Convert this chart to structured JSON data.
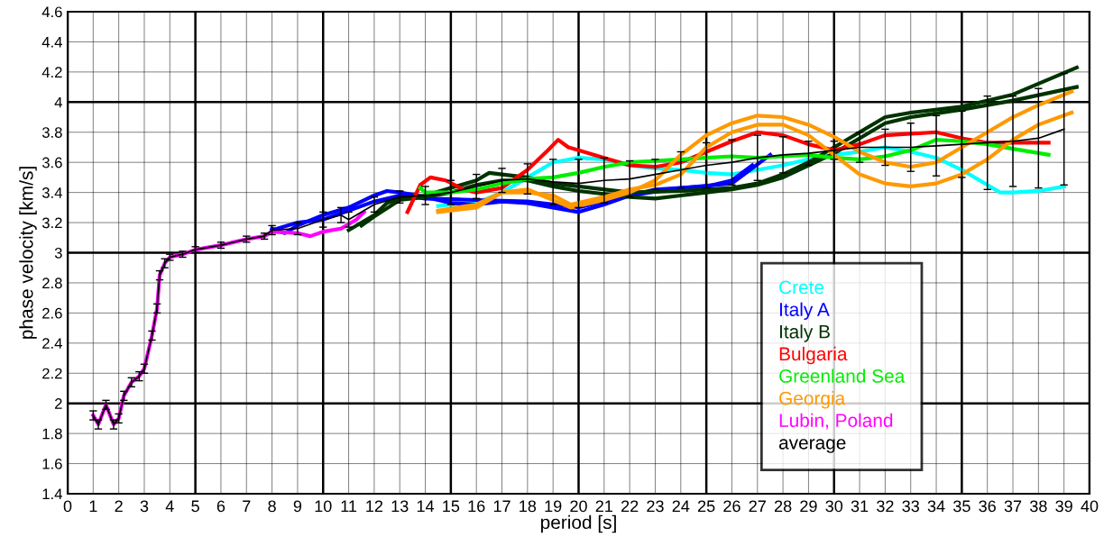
{
  "chart_data": {
    "type": "line",
    "xlabel": "period [s]",
    "ylabel": "phase velocity [km/s]",
    "xlim": [
      0,
      40
    ],
    "ylim": [
      1.4,
      4.6
    ],
    "xticks": [
      0,
      1,
      2,
      3,
      4,
      5,
      6,
      7,
      8,
      9,
      10,
      11,
      12,
      13,
      14,
      15,
      16,
      17,
      18,
      19,
      20,
      21,
      22,
      23,
      24,
      25,
      26,
      27,
      28,
      29,
      30,
      31,
      32,
      33,
      34,
      35,
      36,
      37,
      38,
      39,
      40
    ],
    "yticks": [
      1.4,
      1.6,
      1.8,
      2,
      2.2,
      2.4,
      2.6,
      2.8,
      3,
      3.2,
      3.4,
      3.6,
      3.8,
      4,
      4.2,
      4.4,
      4.6
    ],
    "grid": true,
    "legend": "bottom right",
    "marker": "none",
    "line_style": "solid",
    "series": [
      {
        "name": "Crete",
        "color": "#00ffff",
        "x": [
          14.5,
          15,
          16,
          17,
          18,
          19,
          20,
          21,
          22,
          23,
          24,
          25,
          26,
          27,
          28,
          29,
          30,
          31,
          32,
          33,
          34,
          35,
          36,
          36.5,
          37,
          38,
          39
        ],
        "values": [
          3.31,
          3.32,
          3.33,
          3.4,
          3.5,
          3.6,
          3.63,
          3.62,
          3.58,
          3.56,
          3.55,
          3.53,
          3.52,
          3.55,
          3.58,
          3.62,
          3.65,
          3.67,
          3.7,
          3.67,
          3.63,
          3.55,
          3.45,
          3.4,
          3.4,
          3.41,
          3.44
        ]
      },
      {
        "name": "Italy A",
        "color": "#0000ff",
        "x": [
          8,
          8.5,
          9,
          10,
          11,
          12,
          12.5,
          13,
          14,
          15,
          16,
          17,
          18,
          19,
          20,
          21,
          22,
          23,
          24,
          25,
          26,
          26.8
        ],
        "values": [
          3.16,
          3.13,
          3.18,
          3.25,
          3.3,
          3.38,
          3.41,
          3.4,
          3.37,
          3.33,
          3.32,
          3.34,
          3.33,
          3.3,
          3.27,
          3.32,
          3.38,
          3.42,
          3.43,
          3.44,
          3.48,
          3.58
        ]
      },
      {
        "color": "#0000ff",
        "x": [
          8,
          9,
          10,
          11,
          12,
          13,
          14,
          16,
          18,
          20,
          22,
          24,
          26,
          27.5
        ],
        "values": [
          3.15,
          3.2,
          3.22,
          3.28,
          3.34,
          3.38,
          3.36,
          3.35,
          3.34,
          3.3,
          3.38,
          3.43,
          3.46,
          3.65
        ]
      },
      {
        "name": "Italy B",
        "color": "#003300",
        "x": [
          11,
          12,
          12.5,
          13,
          14,
          15,
          16,
          16.5,
          17,
          18,
          19,
          20,
          22,
          24,
          26,
          27,
          28,
          29,
          30,
          31,
          32,
          33,
          35,
          37,
          39.5
        ],
        "values": [
          3.15,
          3.25,
          3.33,
          3.36,
          3.38,
          3.43,
          3.48,
          3.53,
          3.52,
          3.5,
          3.46,
          3.44,
          3.4,
          3.41,
          3.43,
          3.46,
          3.52,
          3.6,
          3.7,
          3.8,
          3.9,
          3.93,
          3.97,
          4.05,
          4.23
        ]
      },
      {
        "color": "#003300",
        "x": [
          11.5,
          12,
          13,
          14,
          15,
          16,
          17,
          18,
          19,
          20,
          21,
          22,
          23,
          24,
          25,
          26,
          27,
          28,
          29,
          30,
          31,
          32,
          33,
          35,
          37,
          39.5
        ],
        "values": [
          3.18,
          3.24,
          3.35,
          3.37,
          3.4,
          3.45,
          3.48,
          3.48,
          3.44,
          3.41,
          3.39,
          3.37,
          3.36,
          3.38,
          3.4,
          3.42,
          3.45,
          3.5,
          3.58,
          3.66,
          3.76,
          3.86,
          3.9,
          3.95,
          4.01,
          4.1
        ]
      },
      {
        "name": "Bulgaria",
        "color": "#ff0000",
        "x": [
          13.3,
          13.8,
          14.2,
          14.8,
          15.5,
          16,
          17,
          18,
          18.8,
          19.2,
          19.6,
          20,
          21,
          22,
          23,
          24,
          25,
          26,
          27,
          28,
          29,
          30,
          31,
          32,
          33,
          34,
          35,
          36,
          38.4
        ],
        "values": [
          3.27,
          3.45,
          3.5,
          3.48,
          3.42,
          3.4,
          3.43,
          3.55,
          3.68,
          3.75,
          3.7,
          3.68,
          3.63,
          3.58,
          3.57,
          3.6,
          3.67,
          3.74,
          3.8,
          3.78,
          3.72,
          3.68,
          3.72,
          3.78,
          3.79,
          3.8,
          3.76,
          3.73,
          3.73
        ]
      },
      {
        "name": "Greenland Sea",
        "color": "#00ee00",
        "x": [
          13.8,
          14,
          15,
          16,
          17,
          18,
          19,
          20,
          21,
          22,
          23,
          24,
          25,
          26,
          27,
          28,
          29,
          30,
          31,
          32,
          33,
          34,
          35,
          36,
          37,
          38.4
        ],
        "values": [
          3.43,
          3.4,
          3.4,
          3.42,
          3.46,
          3.49,
          3.5,
          3.53,
          3.57,
          3.6,
          3.61,
          3.62,
          3.63,
          3.64,
          3.63,
          3.64,
          3.65,
          3.63,
          3.62,
          3.64,
          3.68,
          3.75,
          3.74,
          3.72,
          3.69,
          3.65
        ]
      },
      {
        "name": "Georgia",
        "color": "#ff9900",
        "x": [
          14.5,
          15,
          16,
          17,
          18,
          19,
          19.7,
          21,
          22,
          23,
          24,
          25,
          26,
          27,
          28,
          29,
          30,
          31,
          32,
          33,
          34,
          35,
          36,
          37,
          38,
          39.3
        ],
        "values": [
          3.27,
          3.28,
          3.3,
          3.4,
          3.42,
          3.35,
          3.3,
          3.35,
          3.4,
          3.48,
          3.65,
          3.78,
          3.86,
          3.91,
          3.9,
          3.85,
          3.77,
          3.67,
          3.6,
          3.57,
          3.6,
          3.7,
          3.8,
          3.9,
          3.98,
          4.07
        ]
      },
      {
        "color": "#ff9900",
        "x": [
          14.5,
          16,
          17,
          18,
          19,
          19.7,
          21,
          22,
          23,
          24,
          25,
          26,
          27,
          28,
          29,
          30,
          31,
          32,
          33,
          34,
          35,
          36,
          37,
          38,
          39.3
        ],
        "values": [
          3.28,
          3.32,
          3.4,
          3.4,
          3.38,
          3.32,
          3.37,
          3.42,
          3.45,
          3.52,
          3.7,
          3.8,
          3.85,
          3.85,
          3.78,
          3.65,
          3.52,
          3.46,
          3.44,
          3.46,
          3.52,
          3.62,
          3.75,
          3.85,
          3.93
        ]
      },
      {
        "name": "Lubin, Poland",
        "color": "#ff00ff",
        "x": [
          1,
          1.2,
          1.5,
          1.8,
          2,
          2.2,
          2.5,
          2.8,
          3,
          3.3,
          3.5,
          3.6,
          3.8,
          4,
          4.5,
          5,
          6,
          7,
          7.7,
          8,
          9,
          9.5,
          10,
          10.7,
          11.3,
          11.6
        ],
        "values": [
          1.92,
          1.86,
          1.99,
          1.86,
          1.9,
          2.05,
          2.14,
          2.18,
          2.23,
          2.45,
          2.63,
          2.85,
          2.93,
          2.97,
          2.99,
          3.02,
          3.05,
          3.09,
          3.11,
          3.14,
          3.13,
          3.11,
          3.14,
          3.16,
          3.22,
          3.27
        ]
      },
      {
        "name": "average",
        "color": "#000000",
        "x": [
          1,
          1.2,
          1.5,
          1.8,
          2,
          2.2,
          2.5,
          2.8,
          3,
          3.3,
          3.5,
          3.6,
          3.8,
          4,
          4.5,
          5,
          6,
          7,
          7.7,
          8,
          9,
          10,
          10.7,
          11,
          12,
          13,
          14,
          15,
          16,
          17,
          18,
          19,
          20,
          21,
          22,
          23,
          24,
          25,
          26,
          27,
          28,
          29,
          30,
          31,
          32,
          33,
          34,
          35,
          36,
          37,
          38,
          39
        ],
        "values": [
          1.92,
          1.86,
          1.99,
          1.86,
          1.9,
          2.05,
          2.14,
          2.18,
          2.23,
          2.45,
          2.63,
          2.85,
          2.93,
          2.97,
          2.99,
          3.02,
          3.05,
          3.09,
          3.11,
          3.15,
          3.16,
          3.22,
          3.25,
          3.22,
          3.32,
          3.37,
          3.38,
          3.4,
          3.44,
          3.48,
          3.49,
          3.47,
          3.46,
          3.48,
          3.49,
          3.52,
          3.55,
          3.58,
          3.6,
          3.63,
          3.65,
          3.66,
          3.68,
          3.7,
          3.7,
          3.7,
          3.71,
          3.72,
          3.73,
          3.74,
          3.76,
          3.82
        ],
        "errors": [
          0.03,
          0.03,
          0.03,
          0.03,
          0.03,
          0.03,
          0.03,
          0.03,
          0.03,
          0.03,
          0.03,
          0.03,
          0.03,
          0.02,
          0.02,
          0.02,
          0.02,
          0.02,
          0.02,
          0.03,
          0.04,
          0.05,
          0.05,
          0.05,
          0.05,
          0.04,
          0.06,
          0.08,
          0.08,
          0.08,
          0.1,
          0.15,
          0.16,
          0.15,
          0.12,
          0.1,
          0.12,
          0.15,
          0.15,
          0.15,
          0.12,
          0.08,
          0.06,
          0.1,
          0.12,
          0.16,
          0.2,
          0.22,
          0.31,
          0.3,
          0.33,
          0.37
        ]
      }
    ]
  }
}
